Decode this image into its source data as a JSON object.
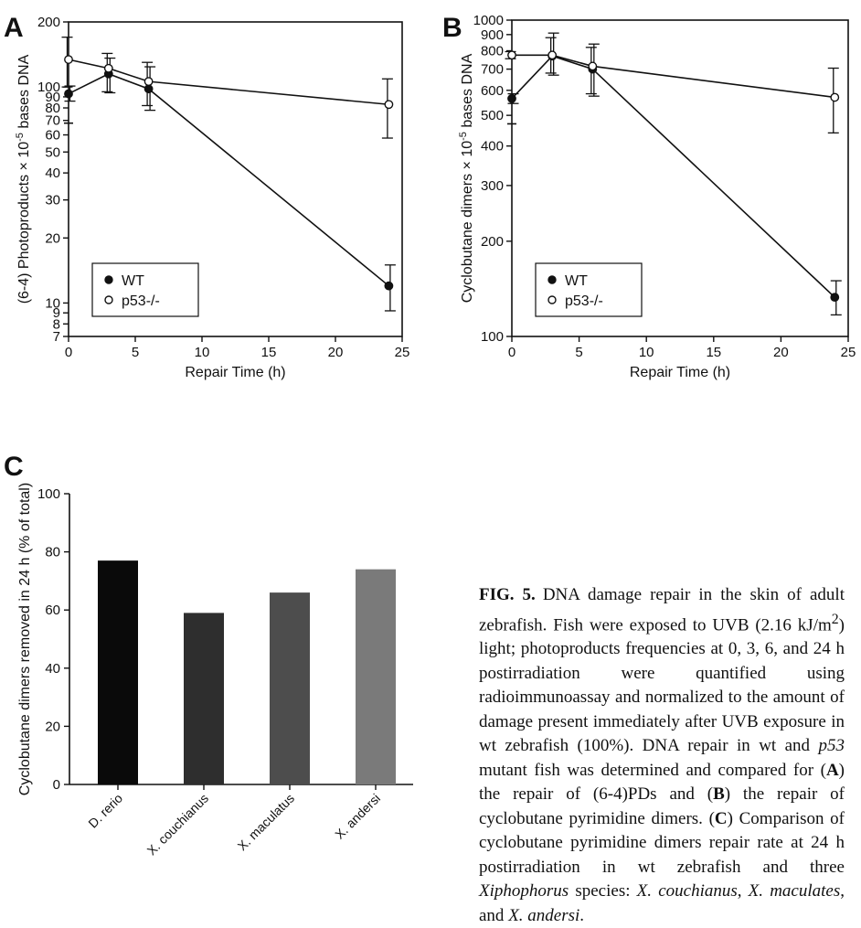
{
  "panel_letters": {
    "a": "A",
    "b": "B",
    "c": "C"
  },
  "chart_data": [
    {
      "panel": "A",
      "type": "line",
      "xlabel": "Repair Time (h)",
      "ylabel": "(6-4) Photoproducts × 10-5 bases DNA",
      "y_scale": "log",
      "xlim": [
        0,
        25
      ],
      "ylim": [
        7,
        200
      ],
      "x_ticks": [
        0,
        5,
        10,
        15,
        20,
        25
      ],
      "y_ticks": [
        7,
        8,
        9,
        10,
        20,
        30,
        40,
        50,
        60,
        70,
        80,
        90,
        100,
        200
      ],
      "y_tick_labels": [
        "7",
        "8",
        "9",
        "10",
        "20",
        "30",
        "40",
        "50",
        "60",
        "70",
        "80",
        "90",
        "100",
        "200"
      ],
      "axis_break": true,
      "legend_position": "bottom-left",
      "series": [
        {
          "name": "WT",
          "marker": "filled-circle",
          "x": [
            0,
            3,
            6,
            24
          ],
          "y": [
            93,
            115,
            98,
            12
          ],
          "err_low": [
            86,
            94,
            78,
            9.2
          ],
          "err_high": [
            101,
            136,
            124,
            15
          ]
        },
        {
          "name": "p53-/-",
          "marker": "open-circle",
          "x": [
            0,
            3,
            6,
            24
          ],
          "y": [
            134,
            122,
            106,
            83
          ],
          "err_low": [
            100,
            95,
            82,
            58
          ],
          "err_high": [
            170,
            143,
            130,
            109
          ]
        }
      ]
    },
    {
      "panel": "B",
      "type": "line",
      "xlabel": "Repair Time (h)",
      "ylabel": "Cyclobutane dimers × 10-5 bases DNA",
      "y_scale": "log",
      "xlim": [
        0,
        25
      ],
      "ylim": [
        100,
        1000
      ],
      "x_ticks": [
        0,
        5,
        10,
        15,
        20,
        25
      ],
      "y_ticks": [
        100,
        200,
        300,
        400,
        500,
        600,
        700,
        800,
        900,
        1000
      ],
      "y_tick_labels": [
        "100",
        "200",
        "300",
        "400",
        "500",
        "600",
        "700",
        "800",
        "900",
        "1000"
      ],
      "axis_break": true,
      "legend_position": "bottom-left",
      "series": [
        {
          "name": "WT",
          "marker": "filled-circle",
          "x": [
            0,
            3,
            6,
            24
          ],
          "y": [
            565,
            770,
            700,
            133
          ],
          "err_low": [
            545,
            670,
            575,
            117
          ],
          "err_high": [
            585,
            910,
            840,
            150
          ]
        },
        {
          "name": "p53-/-",
          "marker": "open-circle",
          "x": [
            0,
            3,
            6,
            24
          ],
          "y": [
            775,
            775,
            715,
            570
          ],
          "err_low": [
            755,
            680,
            585,
            440
          ],
          "err_high": [
            795,
            880,
            820,
            705
          ]
        }
      ]
    },
    {
      "panel": "C",
      "type": "bar",
      "ylabel": "Cyclobutane dimers removed in 24 h (% of total)",
      "ylim": [
        0,
        100
      ],
      "y_ticks": [
        0,
        20,
        40,
        60,
        80,
        100
      ],
      "categories": [
        "D. rerio",
        "X. couchianus",
        "X. maculatus",
        "X. andersi"
      ],
      "values": [
        77,
        59,
        66,
        74
      ],
      "colors": [
        "#0a0a0a",
        "#2e2e2e",
        "#4d4d4d",
        "#7a7a7a"
      ]
    }
  ],
  "caption": {
    "fig_label": "FIG. 5.",
    "text_1": "DNA damage repair in the skin of adult zebrafish. Fish were exposed to UVB (2.16 kJ/m",
    "sup_1": "2",
    "text_2": ") light; photoproducts frequencies at 0, 3, 6, and 24 h postirradiation were quantified using radioimmunoassay and normalized to the amount of damage present immediately after UVB exposure in wt zebrafish (100%). DNA repair in wt and ",
    "italic_1": "p53",
    "text_3": " mutant fish was determined and compared for (",
    "bold_a": "A",
    "text_4": ") the repair of (6-4)PDs and (",
    "bold_b": "B",
    "text_5": ") the repair of cyclobutane pyrimidine dimers. (",
    "bold_c": "C",
    "text_6": ") Comparison of cyclobutane pyrimidine dimers repair rate at 24 h postirradiation in wt zebrafish and three ",
    "italic_2": "Xiphophorus",
    "text_7": " species: ",
    "italic_3": "X. couchianus",
    "text_8": ", ",
    "italic_4": "X. maculates",
    "text_9": ", and ",
    "italic_5": "X. andersi",
    "text_10": "."
  }
}
